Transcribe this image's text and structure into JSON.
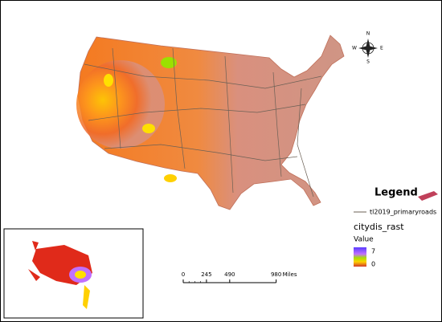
{
  "compass": {
    "north": "N",
    "south": "S",
    "east": "E",
    "west": "W"
  },
  "legend": {
    "title": "Legend",
    "roads_layer": "tl2019_primaryroads",
    "raster_layer": "citydis_rast",
    "value_heading": "Value",
    "high": 7,
    "low": 0
  },
  "scale_bar": {
    "ticks": [
      0,
      245,
      490,
      980
    ],
    "unit": "Miles"
  }
}
